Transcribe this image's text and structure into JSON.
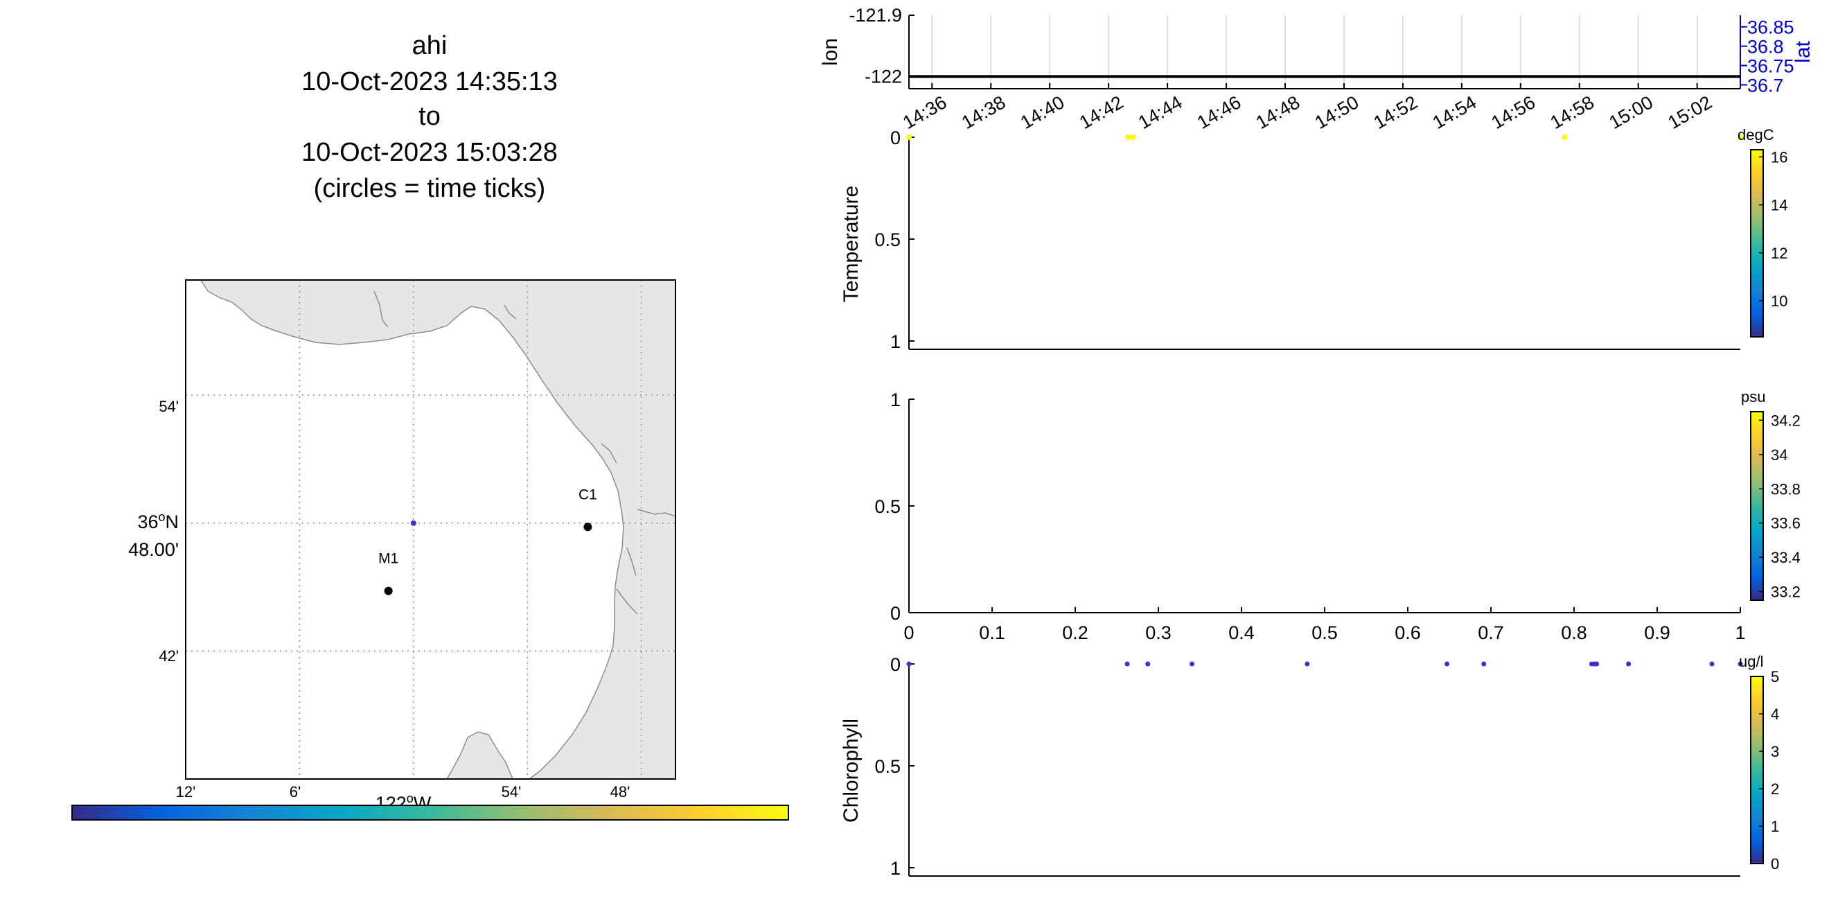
{
  "title": {
    "lines": [
      "ahi",
      "10-Oct-2023 14:35:13",
      "to",
      "10-Oct-2023 15:03:28",
      "(circles = time ticks)"
    ]
  },
  "colors": {
    "land": "#e6e6e6",
    "coast": "#8c8c8c",
    "grid": "#8c8c8c",
    "track": "#3f32cc",
    "axis_blue": "#0000cc",
    "parula": [
      "#352a87",
      "#0363e1",
      "#1485d4",
      "#06a7c6",
      "#38b99e",
      "#92bf73",
      "#d9ba56",
      "#fcce2e",
      "#f9fb0e"
    ]
  },
  "map": {
    "lat_ticks": [
      "54'",
      "48.00'",
      "42'"
    ],
    "lat_degree_label": "36",
    "lat_degree_suffix": "N",
    "lon_ticks": [
      "12'",
      "6'",
      "54'",
      "48'"
    ],
    "lon_degree_label": "122",
    "lon_degree_suffix": "W",
    "stations": [
      {
        "name": "C1",
        "lat": 36.797,
        "lon": -121.847
      },
      {
        "name": "M1",
        "lat": 36.747,
        "lon": -122.022
      }
    ],
    "track_point": {
      "lat": 36.8,
      "lon": -122.0
    }
  },
  "chart_data": [
    {
      "id": "lonlat",
      "type": "line",
      "ylabel": "lon",
      "y2label": "lat",
      "ylim": [
        -122.02,
        -121.9
      ],
      "yticks": [
        "-121.9",
        "-122"
      ],
      "y2ticks": [
        "36.85",
        "36.8",
        "36.75",
        "36.7"
      ],
      "xlim": [
        "14:35:13",
        "15:03:28"
      ],
      "xticks": [
        "14:36",
        "14:38",
        "14:40",
        "14:42",
        "14:44",
        "14:46",
        "14:48",
        "14:50",
        "14:52",
        "14:54",
        "14:56",
        "14:58",
        "15:00",
        "15:02"
      ],
      "series": [
        {
          "values": [
            -122,
            -122
          ]
        }
      ],
      "grid": true
    },
    {
      "id": "temperature",
      "type": "scatter",
      "ylabel": "Temperature",
      "ylim": [
        0,
        1
      ],
      "yticks": [
        "0",
        "0.5",
        "1"
      ],
      "y_reversed": true,
      "colorbar": {
        "unit": "degC",
        "ticks": [
          "16",
          "14",
          "12",
          "10"
        ],
        "range": [
          8.5,
          16.3
        ]
      },
      "points": [
        {
          "t": "14:35:13",
          "depth": 0
        },
        {
          "t": "14:42:40",
          "depth": 0
        },
        {
          "t": "14:42:50",
          "depth": 0
        },
        {
          "t": "14:57:30",
          "depth": 0
        },
        {
          "t": "15:03:28",
          "depth": 0
        }
      ]
    },
    {
      "id": "salinity",
      "type": "scatter",
      "ylabel": "",
      "ylim": [
        0,
        1
      ],
      "yticks": [
        "1",
        "0.5",
        "0"
      ],
      "xticks": [
        "0",
        "0.1",
        "0.2",
        "0.3",
        "0.4",
        "0.5",
        "0.6",
        "0.7",
        "0.8",
        "0.9",
        "1"
      ],
      "colorbar": {
        "unit": "psu",
        "ticks": [
          "34.2",
          "34",
          "33.8",
          "33.6",
          "33.4",
          "33.2"
        ],
        "range": [
          33.15,
          34.25
        ]
      },
      "points": []
    },
    {
      "id": "chlorophyll",
      "type": "scatter",
      "ylabel": "Chlorophyll",
      "ylim": [
        0,
        1
      ],
      "yticks": [
        "0",
        "0.5",
        "1"
      ],
      "y_reversed": true,
      "colorbar": {
        "unit": "ug/l",
        "ticks": [
          "5",
          "4",
          "3",
          "2",
          "1",
          "0"
        ],
        "range": [
          0,
          5
        ]
      },
      "points": [
        {
          "t": "14:35:13",
          "depth": 0
        },
        {
          "t": "14:42:38",
          "depth": 0
        },
        {
          "t": "14:43:20",
          "depth": 0
        },
        {
          "t": "14:44:50",
          "depth": 0
        },
        {
          "t": "14:48:45",
          "depth": 0
        },
        {
          "t": "14:53:30",
          "depth": 0
        },
        {
          "t": "14:54:45",
          "depth": 0
        },
        {
          "t": "14:58:25",
          "depth": 0
        },
        {
          "t": "14:58:30",
          "depth": 0
        },
        {
          "t": "14:58:35",
          "depth": 0
        },
        {
          "t": "14:59:40",
          "depth": 0
        },
        {
          "t": "15:02:30",
          "depth": 0
        },
        {
          "t": "15:03:28",
          "depth": 0
        }
      ]
    }
  ]
}
